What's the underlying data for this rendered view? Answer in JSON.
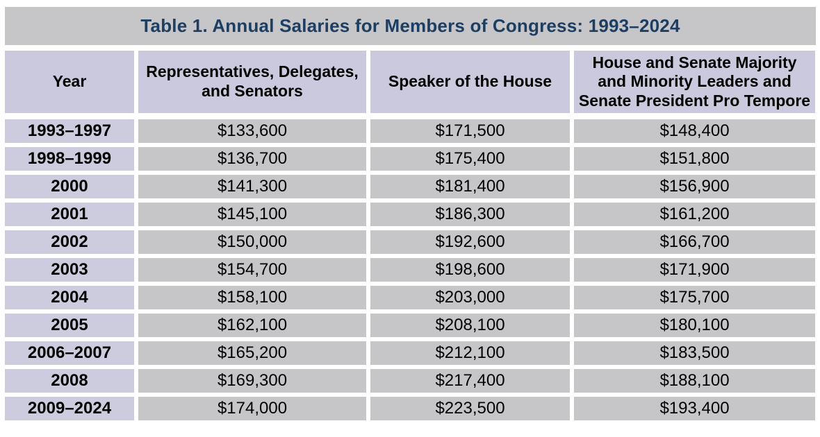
{
  "title": "Table 1. Annual Salaries for Members of Congress: 1993–2024",
  "table": {
    "headers": [
      "Year",
      "Representatives, Delegates, and Senators",
      "Speaker of the House",
      "House and Senate Majority and Minority Leaders and Senate President Pro Tempore"
    ],
    "rows": [
      [
        "1993–1997",
        "$133,600",
        "$171,500",
        "$148,400"
      ],
      [
        "1998–1999",
        "$136,700",
        "$175,400",
        "$151,800"
      ],
      [
        "2000",
        "$141,300",
        "$181,400",
        "$156,900"
      ],
      [
        "2001",
        "$145,100",
        "$186,300",
        "$161,200"
      ],
      [
        "2002",
        "$150,000",
        "$192,600",
        "$166,700"
      ],
      [
        "2003",
        "$154,700",
        "$198,600",
        "$171,900"
      ],
      [
        "2004",
        "$158,100",
        "$203,000",
        "$175,700"
      ],
      [
        "2005",
        "$162,100",
        "$208,100",
        "$180,100"
      ],
      [
        "2006–2007",
        "$165,200",
        "$212,100",
        "$183,500"
      ],
      [
        "2008",
        "$169,300",
        "$217,400",
        "$188,100"
      ],
      [
        "2009–2024",
        "$174,000",
        "$223,500",
        "$193,400"
      ]
    ]
  },
  "colors": {
    "title_text": "#1d3e63",
    "title_bar_bg": "#c6c6c8",
    "header_cell_bg": "#cac9de",
    "year_cell_bg": "#cdccdf",
    "value_cell_bg": "#c6c6c8",
    "page_bg": "#ffffff",
    "cell_text": "#000000"
  }
}
